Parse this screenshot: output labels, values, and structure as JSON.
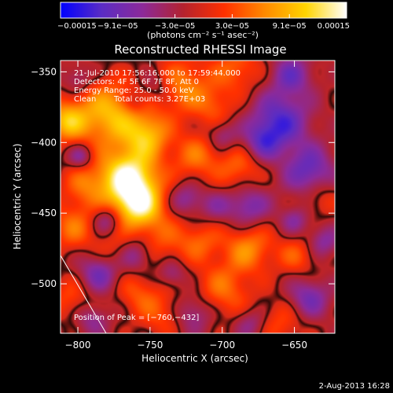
{
  "chart_data": {
    "type": "heatmap",
    "title": "Reconstructed RHESSI Image",
    "xlabel": "Heliocentric X (arcsec)",
    "ylabel": "Heliocentric Y (arcsec)",
    "xlim": [
      -812,
      -622
    ],
    "ylim": [
      -535,
      -342
    ],
    "x_ticks": [
      {
        "value": -800,
        "label": "−800"
      },
      {
        "value": -750,
        "label": "−750"
      },
      {
        "value": -700,
        "label": "−700"
      },
      {
        "value": -650,
        "label": "−650"
      }
    ],
    "y_ticks": [
      {
        "value": -350,
        "label": "−350"
      },
      {
        "value": -400,
        "label": "−400"
      },
      {
        "value": -450,
        "label": "−450"
      },
      {
        "value": -500,
        "label": "−500"
      }
    ],
    "colorbar": {
      "min": -0.00015,
      "max": 0.00015,
      "tick_labels": [
        "−0.00015",
        "−9.1e−05",
        "−3.0e−05",
        "3.0e−05",
        "9.1e−05",
        "0.00015"
      ],
      "label": "(photons cm⁻² s⁻¹ asec⁻²)",
      "colors": [
        "#0000ff",
        "#5a2cc4",
        "#8c2a9a",
        "#b4222e",
        "#ff3000",
        "#ff8a00",
        "#ffd400",
        "#ffffff"
      ]
    },
    "peak": {
      "x": -760,
      "y": -432
    },
    "blobs": [
      {
        "x": -765,
        "y": -425,
        "s": 14,
        "a": 1.25
      },
      {
        "x": -758,
        "y": -445,
        "s": 12,
        "a": 1.0
      },
      {
        "x": -778,
        "y": -380,
        "s": 16,
        "a": 0.85
      },
      {
        "x": -752,
        "y": -395,
        "s": 11,
        "a": 0.75
      },
      {
        "x": -808,
        "y": -385,
        "s": 10,
        "a": 0.8
      },
      {
        "x": -795,
        "y": -430,
        "s": 11,
        "a": 0.45
      },
      {
        "x": -728,
        "y": -360,
        "s": 14,
        "a": 0.6
      },
      {
        "x": -718,
        "y": -410,
        "s": 12,
        "a": 0.5
      },
      {
        "x": -690,
        "y": -348,
        "s": 12,
        "a": 0.45
      },
      {
        "x": -705,
        "y": -375,
        "s": 10,
        "a": 0.35
      },
      {
        "x": -688,
        "y": -418,
        "s": 11,
        "a": 0.45
      },
      {
        "x": -740,
        "y": -470,
        "s": 13,
        "a": 0.35
      },
      {
        "x": -715,
        "y": -470,
        "s": 10,
        "a": 0.4
      },
      {
        "x": -682,
        "y": -475,
        "s": 12,
        "a": 0.6
      },
      {
        "x": -700,
        "y": -505,
        "s": 14,
        "a": 0.5
      },
      {
        "x": -742,
        "y": -520,
        "s": 12,
        "a": 0.4
      },
      {
        "x": -760,
        "y": -505,
        "s": 10,
        "a": 0.35
      },
      {
        "x": -803,
        "y": -460,
        "s": 12,
        "a": 0.5
      },
      {
        "x": -805,
        "y": -510,
        "s": 11,
        "a": 0.35
      },
      {
        "x": -648,
        "y": -480,
        "s": 10,
        "a": 0.4
      },
      {
        "x": -632,
        "y": -440,
        "s": 9,
        "a": 0.3
      },
      {
        "x": -660,
        "y": -528,
        "s": 12,
        "a": 0.35
      },
      {
        "x": -775,
        "y": -478,
        "s": 10,
        "a": 0.3
      },
      {
        "x": -660,
        "y": -385,
        "s": 14,
        "a": -0.75
      },
      {
        "x": -652,
        "y": -352,
        "s": 10,
        "a": -0.55
      },
      {
        "x": -640,
        "y": -420,
        "s": 12,
        "a": -0.65
      },
      {
        "x": -682,
        "y": -445,
        "s": 10,
        "a": -0.55
      },
      {
        "x": -672,
        "y": -400,
        "s": 9,
        "a": -0.5
      },
      {
        "x": -705,
        "y": -445,
        "s": 8,
        "a": -0.3
      },
      {
        "x": -725,
        "y": -440,
        "s": 8,
        "a": -0.45
      },
      {
        "x": -700,
        "y": -395,
        "s": 7,
        "a": -0.4
      },
      {
        "x": -745,
        "y": -360,
        "s": 8,
        "a": -0.35
      },
      {
        "x": -785,
        "y": -492,
        "s": 10,
        "a": -0.6
      },
      {
        "x": -790,
        "y": -525,
        "s": 8,
        "a": -0.4
      },
      {
        "x": -760,
        "y": -480,
        "s": 8,
        "a": -0.5
      },
      {
        "x": -720,
        "y": -520,
        "s": 10,
        "a": -0.5
      },
      {
        "x": -735,
        "y": -493,
        "s": 7,
        "a": -0.4
      },
      {
        "x": -680,
        "y": -528,
        "s": 8,
        "a": -0.4
      },
      {
        "x": -640,
        "y": -510,
        "s": 10,
        "a": -0.55
      },
      {
        "x": -630,
        "y": -470,
        "s": 8,
        "a": -0.45
      },
      {
        "x": -650,
        "y": -455,
        "s": 7,
        "a": -0.4
      },
      {
        "x": -798,
        "y": -410,
        "s": 6,
        "a": -0.5
      },
      {
        "x": -800,
        "y": -355,
        "s": 7,
        "a": -0.35
      },
      {
        "x": -780,
        "y": -455,
        "s": 7,
        "a": -0.5
      },
      {
        "x": -760,
        "y": -372,
        "s": 6,
        "a": -0.3
      }
    ]
  },
  "annotations": {
    "time_range": "21-Jul-2010 17:56:16.000 to 17:59:44.000",
    "detectors": "Detectors: 4F 5F 6F 7F 8F, Att 0",
    "energy": "Energy Range: 25.0 - 50.0 keV",
    "clean": "Clean",
    "counts": "Total counts: 3.27E+03",
    "peak": "Position of Peak = [−760,−432]",
    "date_stamp": "2-Aug-2013 16:28"
  }
}
